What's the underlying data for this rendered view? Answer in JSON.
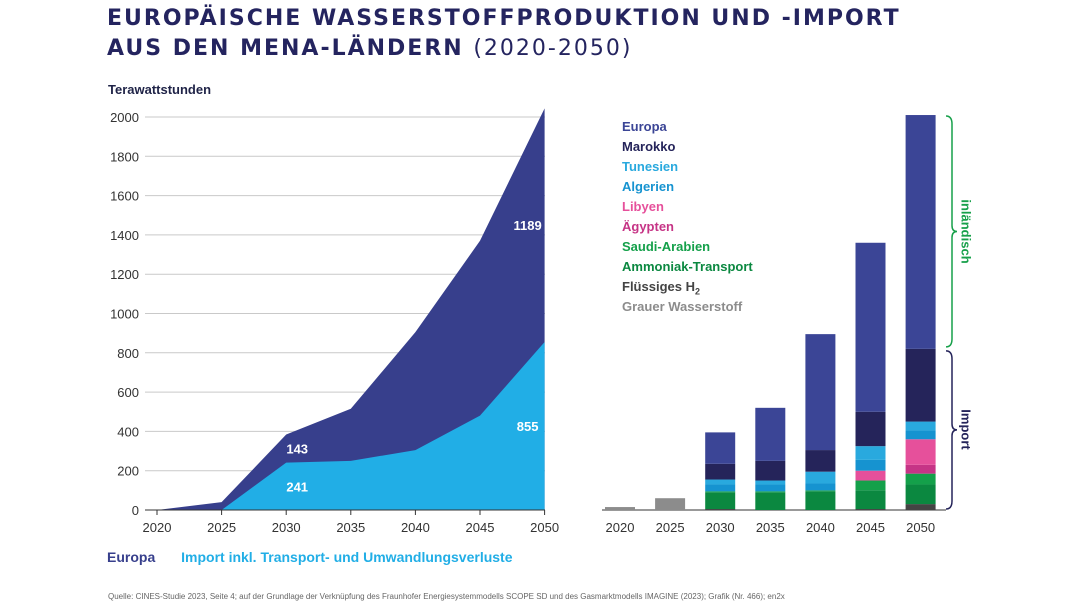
{
  "title_line1": "EUROPÄISCHE WASSERSTOFFPRODUKTION UND -IMPORT",
  "title_line2_bold": "AUS DEN MENA-LÄNDERN",
  "title_line2_light": "(2020-2050)",
  "y_axis_unit": "Terawattstunden",
  "bottom_legend": {
    "europa": "Europa",
    "import": "Import inkl. Transport- und Umwandlungsverluste"
  },
  "source": "Quelle: CINES-Studie 2023, Seite 4; auf der Grundlage der Verknüpfung des Fraunhofer Energiesystemmodells SCOPE SD und des Gasmarktmodells IMAGINE (2023); Grafik (Nr. 466); en2x",
  "colors": {
    "Europa": "#3b4596",
    "Marokko": "#25245a",
    "Tunesien": "#29a9de",
    "Algerien": "#1693d0",
    "Libyen": "#e6509b",
    "Ägypten": "#c63486",
    "Saudi-Arabien": "#14a04a",
    "Ammoniak-Transport": "#0b8840",
    "Flüssiges H2": "#444444",
    "Grauer Wasserstoff": "#8c8c8c",
    "import_area": "#21aee6",
    "europa_area": "#373f8c",
    "bracket_inland": "#17a04a",
    "bracket_import": "#25245a"
  },
  "right_legend": [
    {
      "key": "Europa",
      "label": "Europa"
    },
    {
      "key": "Marokko",
      "label": "Marokko"
    },
    {
      "key": "Tunesien",
      "label": "Tunesien"
    },
    {
      "key": "Algerien",
      "label": "Algerien"
    },
    {
      "key": "Libyen",
      "label": "Libyen"
    },
    {
      "key": "Ägypten",
      "label": "Ägypten"
    },
    {
      "key": "Saudi-Arabien",
      "label": "Saudi-Arabien"
    },
    {
      "key": "Ammoniak-Transport",
      "label": "Ammoniak-Transport"
    },
    {
      "key": "Flüssiges H2",
      "label": "Flüssiges H",
      "sub": "2"
    },
    {
      "key": "Grauer Wasserstoff",
      "label": "Grauer Wasserstoff"
    }
  ],
  "brackets": {
    "inland": "inländisch",
    "import": "Import"
  },
  "chart_data": [
    {
      "type": "area",
      "x": [
        2020,
        2025,
        2030,
        2035,
        2040,
        2045,
        2050
      ],
      "ylim": [
        0,
        2000
      ],
      "yticks": [
        0,
        200,
        400,
        600,
        800,
        1000,
        1200,
        1400,
        1600,
        1800,
        2000
      ],
      "stacked": true,
      "series": [
        {
          "name": "Import inkl. Transport- und Umwandlungsverluste",
          "key": "import_area",
          "values": [
            0,
            0,
            241,
            250,
            305,
            480,
            855
          ]
        },
        {
          "name": "Europa",
          "key": "europa_area",
          "values": [
            0,
            40,
            143,
            265,
            600,
            890,
            1189
          ]
        }
      ],
      "data_labels": [
        {
          "x": 2030,
          "series": 0,
          "text": "241"
        },
        {
          "x": 2030,
          "series": 1,
          "text": "143"
        },
        {
          "x": 2050,
          "series": 0,
          "text": "855"
        },
        {
          "x": 2050,
          "series": 1,
          "text": "1189"
        }
      ]
    },
    {
      "type": "bar",
      "stacked": true,
      "categories": [
        "2020",
        "2025",
        "2030",
        "2035",
        "2040",
        "2045",
        "2050"
      ],
      "ylim": [
        0,
        2000
      ],
      "series": [
        {
          "key": "Grauer Wasserstoff",
          "values": [
            15,
            60,
            0,
            0,
            0,
            0,
            0
          ]
        },
        {
          "key": "Flüssiges H2",
          "values": [
            0,
            0,
            5,
            0,
            0,
            5,
            30
          ]
        },
        {
          "key": "Ammoniak-Transport",
          "values": [
            0,
            0,
            85,
            90,
            95,
            95,
            100
          ]
        },
        {
          "key": "Saudi-Arabien",
          "values": [
            0,
            0,
            5,
            5,
            5,
            50,
            55
          ]
        },
        {
          "key": "Ägypten",
          "values": [
            0,
            0,
            0,
            0,
            0,
            0,
            45
          ]
        },
        {
          "key": "Libyen",
          "values": [
            0,
            0,
            0,
            0,
            0,
            50,
            130
          ]
        },
        {
          "key": "Algerien",
          "values": [
            0,
            0,
            35,
            35,
            35,
            55,
            45
          ]
        },
        {
          "key": "Tunesien",
          "values": [
            0,
            0,
            25,
            20,
            60,
            70,
            45
          ]
        },
        {
          "key": "Marokko",
          "values": [
            0,
            0,
            80,
            100,
            110,
            175,
            370
          ]
        },
        {
          "key": "Europa",
          "values": [
            0,
            0,
            160,
            270,
            590,
            860,
            1190
          ]
        }
      ]
    }
  ]
}
